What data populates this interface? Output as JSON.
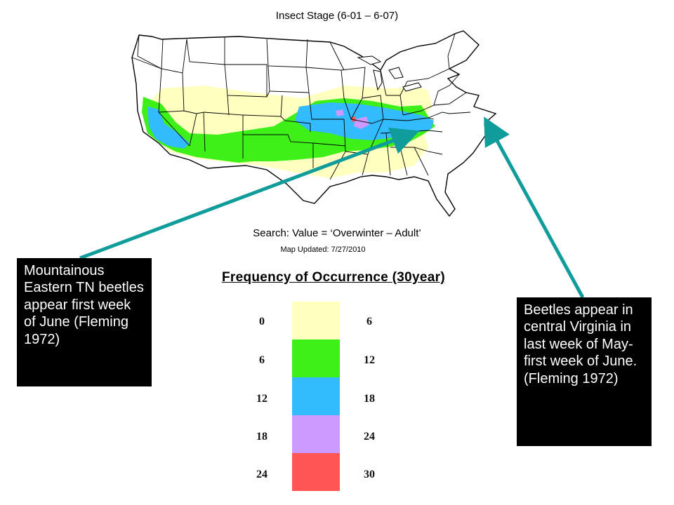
{
  "map": {
    "title": "Insect Stage (6-01 – 6-07)",
    "search": "Search: Value = ‘Overwinter – Adult’",
    "updated": "Map Updated: 7/27/2010",
    "region": "Contiguous United States"
  },
  "legend": {
    "title": "Frequency of Occurrence (30year)",
    "bins": [
      {
        "low": "0",
        "high": "6",
        "color": "#ffffc0"
      },
      {
        "low": "6",
        "high": "12",
        "color": "#3df018"
      },
      {
        "low": "12",
        "high": "18",
        "color": "#33bbff"
      },
      {
        "low": "18",
        "high": "24",
        "color": "#cc99ff"
      },
      {
        "low": "24",
        "high": "30",
        "color": "#ff5555"
      }
    ]
  },
  "notes": {
    "left": "Mountainous Eastern TN beetles appear first week of June (Fleming 1972)",
    "right": "Beetles appear in central Virginia in last week of May- first week of June.(Fleming 1972)"
  },
  "colors": {
    "arrow": "#119c9c",
    "note_bg": "#000000",
    "note_text": "#ffffff",
    "land": "#ffffff",
    "borders": "#000000"
  }
}
